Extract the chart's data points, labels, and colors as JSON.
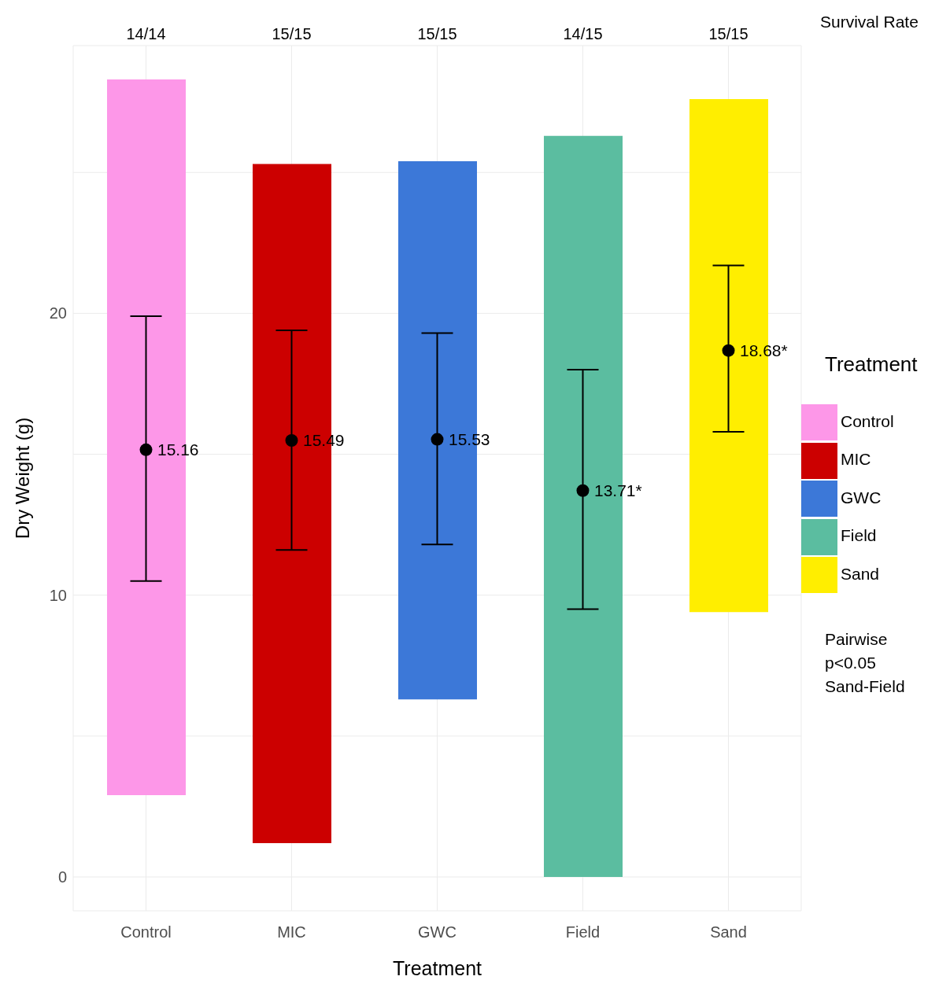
{
  "chart_data": {
    "type": "bar",
    "xlabel": "Treatment",
    "ylabel": "Dry Weight (g)",
    "legend_title": "Treatment",
    "categories": [
      "Control",
      "MIC",
      "GWC",
      "Field",
      "Sand"
    ],
    "ylim": [
      -1.2,
      29.5
    ],
    "yticks": [
      0,
      {
        "value": 5,
        "label": null
      },
      10,
      {
        "value": 15,
        "label": null
      },
      20,
      {
        "value": 25,
        "label": null
      }
    ],
    "grid": true,
    "legend": "right",
    "series": [
      {
        "name": "Control",
        "color": "#fd97e8",
        "base": [
          2.9,
          null,
          null,
          null,
          null
        ],
        "values": [
          25.4,
          null,
          null,
          null,
          null
        ]
      },
      {
        "name": "MIC",
        "color": "#cc0000",
        "base": [
          null,
          1.2,
          null,
          null,
          null
        ],
        "values": [
          null,
          24.1,
          null,
          null,
          null
        ]
      },
      {
        "name": "GWC",
        "color": "#3c78d8",
        "base": [
          null,
          null,
          6.3,
          null,
          null
        ],
        "values": [
          null,
          null,
          19.1,
          null,
          null
        ]
      },
      {
        "name": "Field",
        "color": "#5bbda0",
        "base": [
          null,
          null,
          null,
          0,
          null
        ],
        "values": [
          null,
          null,
          null,
          26.3,
          null
        ]
      },
      {
        "name": "Sand",
        "color": "#ffee00",
        "base": [
          null,
          null,
          null,
          null,
          9.4
        ],
        "values": [
          null,
          null,
          null,
          null,
          18.2
        ]
      },
      {
        "type": "scatter",
        "color": "#000000",
        "marker": "circle",
        "values": [
          15.16,
          15.49,
          15.53,
          13.71,
          18.68
        ],
        "errors": [
          [
            10.5,
            19.9
          ],
          [
            11.6,
            19.4
          ],
          [
            11.8,
            19.3
          ],
          [
            9.5,
            18.0
          ],
          [
            15.8,
            21.7
          ]
        ],
        "value_labels": [
          "15.16",
          "15.49",
          "15.53",
          "13.71*",
          "18.68*"
        ]
      }
    ],
    "annotations": [
      "14/14",
      "15/15",
      "15/15",
      "14/15",
      "15/15",
      "Survival Rate",
      "Pairwise\np<0.05\nSand-Field"
    ]
  }
}
